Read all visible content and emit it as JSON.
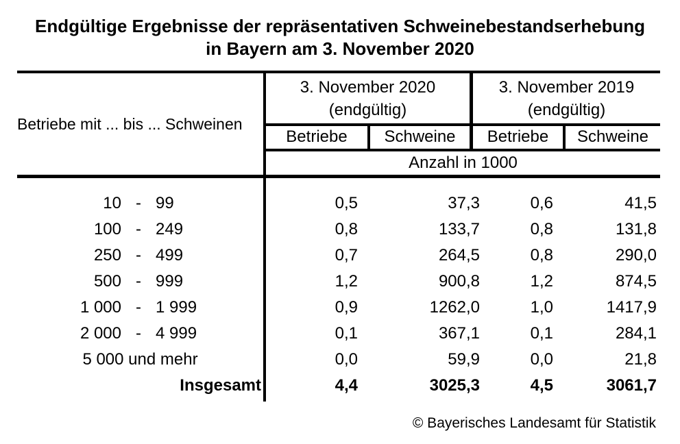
{
  "title": {
    "line1": "Endgültige Ergebnisse der repräsentativen Schweinebestandserhebung",
    "line2": "in Bayern am 3. November 2020"
  },
  "table": {
    "row_header": "Betriebe mit ... bis ... Schweinen",
    "col_groups": [
      {
        "title_line1": "3. November 2020",
        "title_line2": "(endgültig)",
        "columns": [
          "Betriebe",
          "Schweine"
        ]
      },
      {
        "title_line1": "3. November 2019",
        "title_line2": "(endgültig)",
        "columns": [
          "Betriebe",
          "Schweine"
        ]
      }
    ],
    "unit_row": "Anzahl in 1000",
    "dash": "-",
    "rows": [
      {
        "range_from": "10",
        "range_to": "99",
        "values": [
          "0,5",
          "37,3",
          "0,6",
          "41,5"
        ]
      },
      {
        "range_from": "100",
        "range_to": "249",
        "values": [
          "0,8",
          "133,7",
          "0,8",
          "131,8"
        ]
      },
      {
        "range_from": "250",
        "range_to": "499",
        "values": [
          "0,7",
          "264,5",
          "0,8",
          "290,0"
        ]
      },
      {
        "range_from": "500",
        "range_to": "999",
        "values": [
          "1,2",
          "900,8",
          "1,2",
          "874,5"
        ]
      },
      {
        "range_from": "1 000",
        "range_to": "1 999",
        "values": [
          "0,9",
          "1262,0",
          "1,0",
          "1417,9"
        ]
      },
      {
        "range_from": "2 000",
        "range_to": "4 999",
        "values": [
          "0,1",
          "367,1",
          "0,1",
          "284,1"
        ]
      },
      {
        "label": "5 000 und mehr",
        "values": [
          "0,0",
          "59,9",
          "0,0",
          "21,8"
        ]
      },
      {
        "label": "Insgesamt",
        "total": true,
        "values": [
          "4,4",
          "3025,3",
          "4,5",
          "3061,7"
        ]
      }
    ]
  },
  "footer": {
    "copyright": "© Bayerisches Landesamt für Statistik"
  }
}
